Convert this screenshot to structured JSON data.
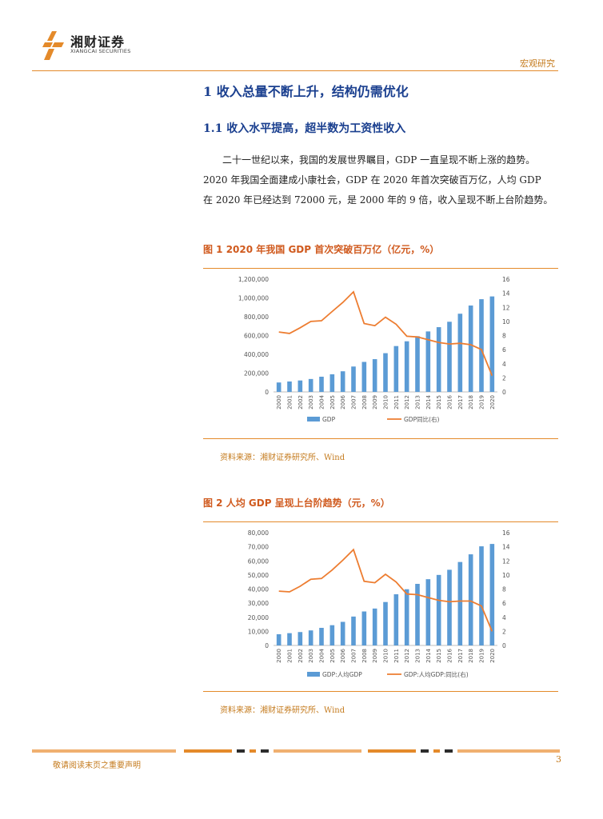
{
  "header": {
    "brand_cn": "湘财证券",
    "brand_en": "XIANGCAI SECURITIES",
    "section_tag": "宏观研究"
  },
  "heading1": "1 收入总量不断上升，结构仍需优化",
  "heading2": "1.1 收入水平提高，超半数为工资性收入",
  "paragraph_lines": [
    "二十一世纪以来，我国的发展世界瞩目，GDP 一直呈现不断上涨的趋势。",
    "2020 年我国全面建成小康社会，GDP 在 2020 年首次突破百万亿，人均 GDP",
    "在 2020 年已经达到 72000 元，是 2000 年的 9 倍，收入呈现不断上台阶趋势。"
  ],
  "figure1": {
    "title": "图 1 2020 年我国 GDP 首次突破百万亿（亿元，%）",
    "source": "资料来源：湘财证券研究所、Wind"
  },
  "figure2": {
    "title": "图 2 人均 GDP 呈现上台阶趋势（元，%）",
    "source": "资料来源：湘财证券研究所、Wind"
  },
  "footer": {
    "note": "敬请阅读末页之重要声明",
    "page": "3"
  },
  "colors": {
    "bar": "#5b9bd5",
    "line": "#ed7d31",
    "heading": "#1a3f8f",
    "accent": "#e48a2a"
  },
  "chart_data": [
    {
      "type": "bar",
      "categories": [
        "2000",
        "2001",
        "2002",
        "2003",
        "2004",
        "2005",
        "2006",
        "2007",
        "2008",
        "2009",
        "2010",
        "2011",
        "2012",
        "2013",
        "2014",
        "2015",
        "2016",
        "2017",
        "2018",
        "2019",
        "2020"
      ],
      "series": [
        {
          "name": "GDP",
          "type": "bar",
          "axis": "left",
          "values": [
            100280,
            110863,
            121717,
            137422,
            161840,
            187319,
            219438,
            270092,
            319245,
            348518,
            412119,
            487940,
            538580,
            592963,
            643563,
            688858,
            746395,
            832036,
            919281,
            986515,
            1015986
          ]
        },
        {
          "name": "GDP同比(右)",
          "type": "line",
          "axis": "right",
          "values": [
            8.5,
            8.3,
            9.1,
            10.0,
            10.1,
            11.4,
            12.7,
            14.2,
            9.7,
            9.4,
            10.6,
            9.6,
            7.9,
            7.8,
            7.4,
            7.0,
            6.8,
            6.9,
            6.7,
            6.0,
            2.3
          ]
        }
      ],
      "ylim_left": [
        0,
        1200000
      ],
      "yticks_left": [
        "0",
        "200,000",
        "400,000",
        "600,000",
        "800,000",
        "1,000,000",
        "1,200,000"
      ],
      "ylim_right": [
        0,
        16
      ],
      "yticks_right": [
        "0",
        "2",
        "4",
        "6",
        "8",
        "10",
        "12",
        "14",
        "16"
      ],
      "legend": [
        "GDP",
        "GDP同比(右)"
      ],
      "legend_position": "bottom"
    },
    {
      "type": "bar",
      "categories": [
        "2000",
        "2001",
        "2002",
        "2003",
        "2004",
        "2005",
        "2006",
        "2007",
        "2008",
        "2009",
        "2010",
        "2011",
        "2012",
        "2013",
        "2014",
        "2015",
        "2016",
        "2017",
        "2018",
        "2019",
        "2020"
      ],
      "series": [
        {
          "name": "GDP:人均GDP",
          "type": "bar",
          "axis": "left",
          "values": [
            7942,
            8717,
            9506,
            10666,
            12487,
            14368,
            16738,
            20494,
            24100,
            26180,
            30808,
            36302,
            39874,
            43684,
            47005,
            50028,
            53680,
            59201,
            64644,
            70328,
            72000
          ]
        },
        {
          "name": "GDP:人均GDP:同比(右)",
          "type": "line",
          "axis": "right",
          "values": [
            7.7,
            7.6,
            8.4,
            9.4,
            9.5,
            10.7,
            12.1,
            13.6,
            9.1,
            8.9,
            10.1,
            9.0,
            7.3,
            7.2,
            6.8,
            6.4,
            6.2,
            6.3,
            6.3,
            5.6,
            2.0
          ]
        }
      ],
      "ylim_left": [
        0,
        80000
      ],
      "yticks_left": [
        "0",
        "10,000",
        "20,000",
        "30,000",
        "40,000",
        "50,000",
        "60,000",
        "70,000",
        "80,000"
      ],
      "ylim_right": [
        0,
        16
      ],
      "yticks_right": [
        "0",
        "2",
        "4",
        "6",
        "8",
        "10",
        "12",
        "14",
        "16"
      ],
      "legend": [
        "GDP:人均GDP",
        "GDP:人均GDP:同比(右)"
      ],
      "legend_position": "bottom"
    }
  ]
}
